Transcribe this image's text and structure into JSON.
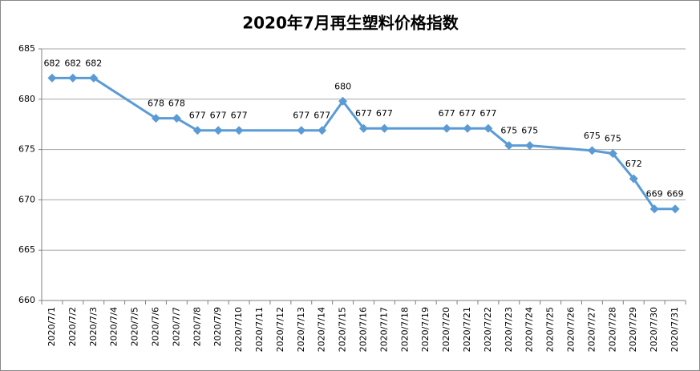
{
  "chart_data": {
    "type": "line",
    "title": "2020年7月再生塑料价格指数",
    "xticks": [
      "2020/7/1",
      "2020/7/2",
      "2020/7/3",
      "2020/7/4",
      "2020/7/5",
      "2020/7/6",
      "2020/7/7",
      "2020/7/8",
      "2020/7/9",
      "2020/7/10",
      "2020/7/11",
      "2020/7/12",
      "2020/7/13",
      "2020/7/14",
      "2020/7/15",
      "2020/7/16",
      "2020/7/17",
      "2020/7/18",
      "2020/7/19",
      "2020/7/20",
      "2020/7/21",
      "2020/7/22",
      "2020/7/23",
      "2020/7/24",
      "2020/7/25",
      "2020/7/26",
      "2020/7/27",
      "2020/7/28",
      "2020/7/29",
      "2020/7/30",
      "2020/7/31"
    ],
    "x": [
      "2020/7/1",
      "2020/7/2",
      "2020/7/3",
      "2020/7/6",
      "2020/7/7",
      "2020/7/8",
      "2020/7/9",
      "2020/7/10",
      "2020/7/13",
      "2020/7/14",
      "2020/7/15",
      "2020/7/16",
      "2020/7/17",
      "2020/7/20",
      "2020/7/21",
      "2020/7/22",
      "2020/7/23",
      "2020/7/24",
      "2020/7/27",
      "2020/7/28",
      "2020/7/29",
      "2020/7/30",
      "2020/7/31"
    ],
    "series": [
      {
        "color": "#5b9bd5",
        "values": [
          682.1,
          682.1,
          682.1,
          678.1,
          678.1,
          676.9,
          676.9,
          676.9,
          676.9,
          676.9,
          679.8,
          677.1,
          677.1,
          677.1,
          677.1,
          677.1,
          675.4,
          675.4,
          674.9,
          674.6,
          672.1,
          669.1,
          669.1
        ],
        "value_labels": [
          "682",
          "682",
          "682",
          "678",
          "678",
          "677",
          "677",
          "677",
          "677",
          "677",
          "680",
          "677",
          "677",
          "677",
          "677",
          "677",
          "675",
          "675",
          "675",
          "675",
          "672",
          "669",
          "669"
        ]
      }
    ],
    "ylim": [
      660,
      685
    ],
    "yticks": [
      660,
      665,
      670,
      675,
      680,
      685
    ],
    "grid": true
  }
}
